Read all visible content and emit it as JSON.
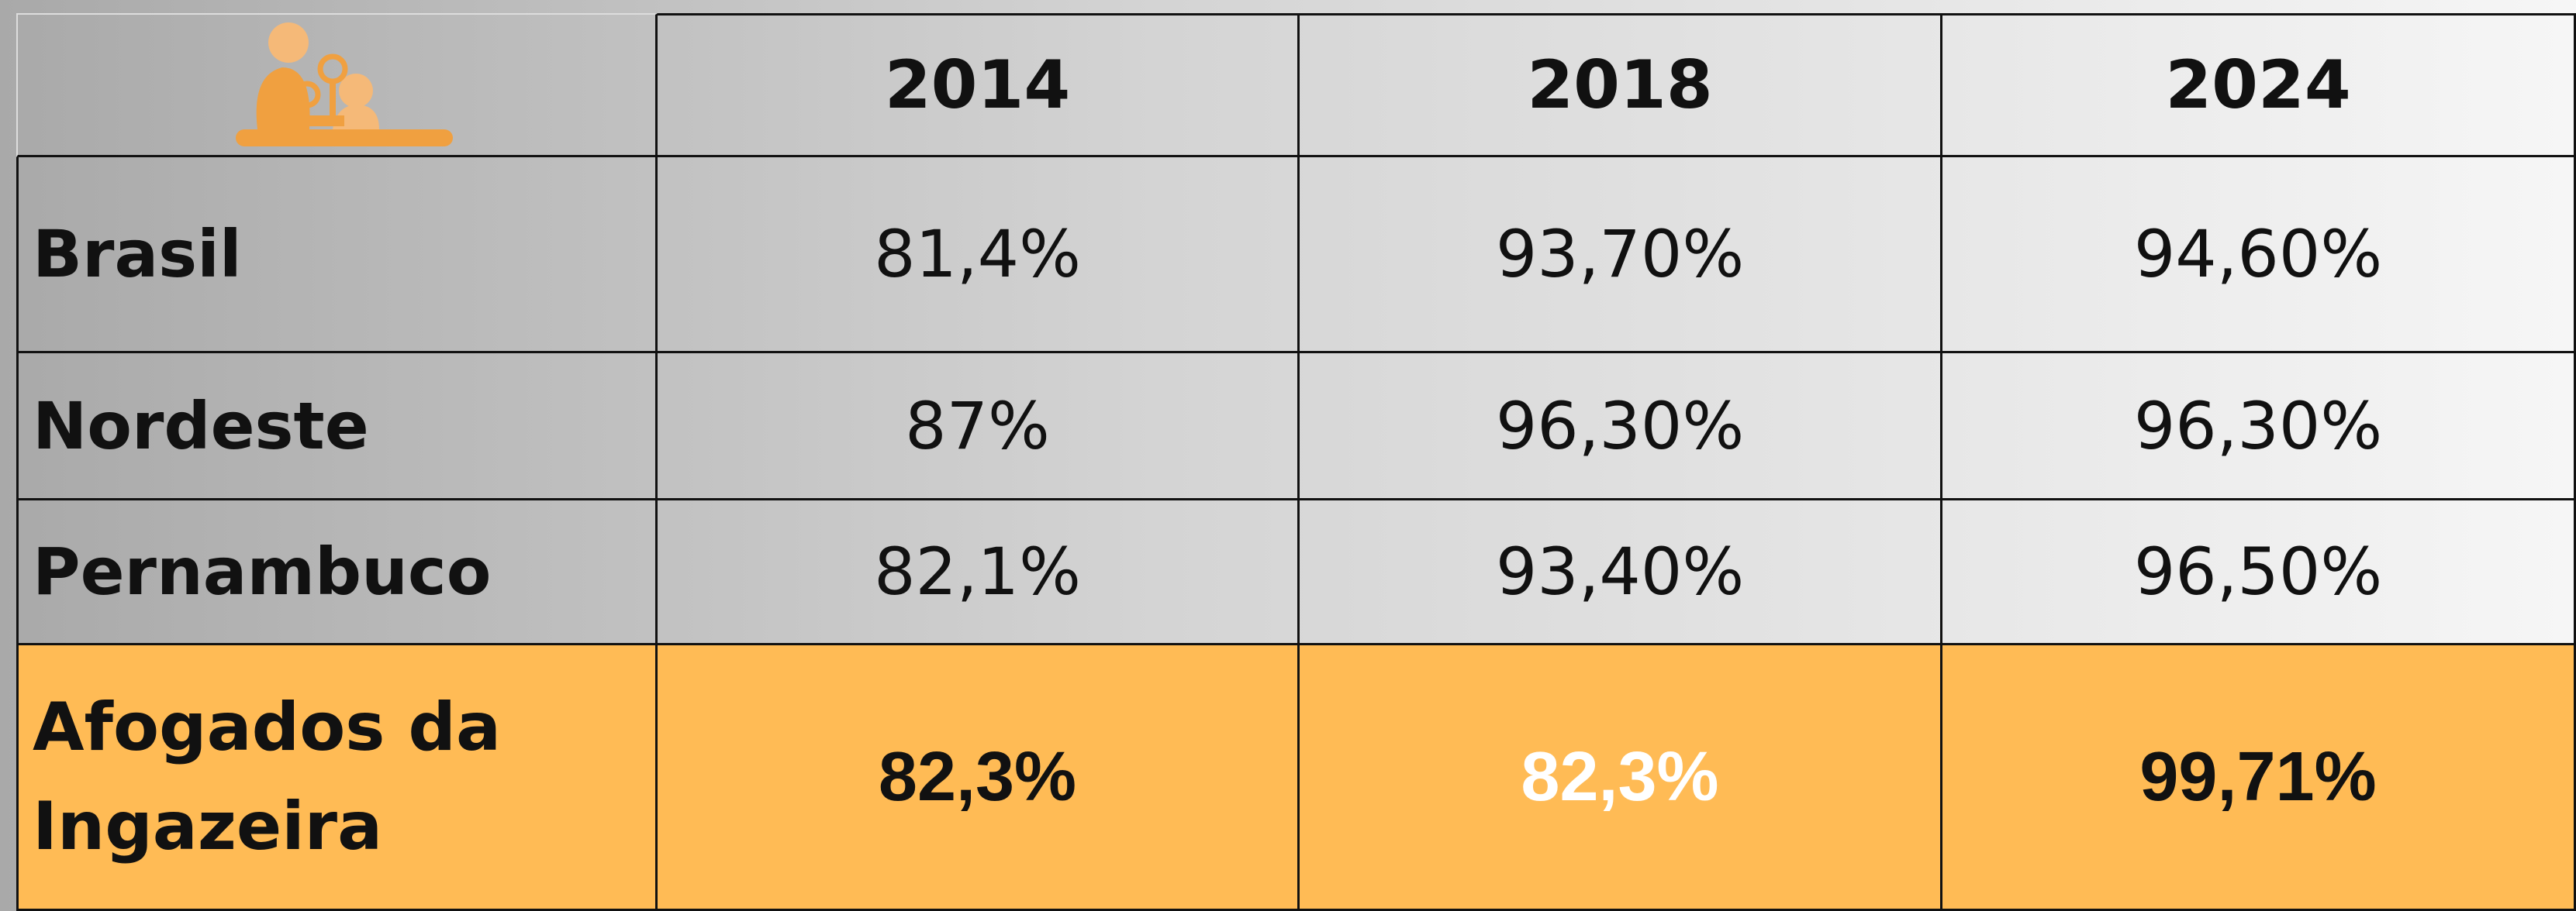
{
  "header": {
    "columns": [
      "2014",
      "2018",
      "2024"
    ]
  },
  "table": {
    "rows": [
      {
        "label": "Brasil",
        "cells": [
          "81,4%",
          "93,70%",
          "94,60%"
        ]
      },
      {
        "label": "Nordeste",
        "cells": [
          "87%",
          "96,30%",
          "96,30%"
        ]
      },
      {
        "label": "Pernambuco",
        "cells": [
          "82,1%",
          "93,40%",
          "96,50%"
        ]
      },
      {
        "label": "Afogados da Ingazeira",
        "cells": [
          "82,3%",
          "82,3%",
          "99,71%"
        ]
      }
    ]
  }
}
